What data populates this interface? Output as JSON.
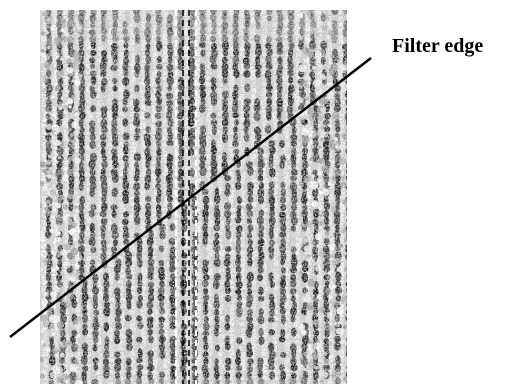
{
  "annotation": {
    "filter_edge_label": "Filter edge"
  },
  "colors": {
    "background": "#ffffff",
    "fringe_dark": "#141414",
    "fringe_light": "#f2f2f2",
    "line": "#000000",
    "dashed_guides": "#ffffff"
  }
}
